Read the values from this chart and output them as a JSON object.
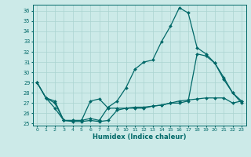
{
  "xlabel": "Humidex (Indice chaleur)",
  "bg_color": "#cceae8",
  "grid_color": "#aad4d0",
  "line_color": "#006868",
  "xlim": [
    -0.5,
    23.5
  ],
  "ylim": [
    24.8,
    36.6
  ],
  "yticks": [
    25,
    26,
    27,
    28,
    29,
    30,
    31,
    32,
    33,
    34,
    35,
    36
  ],
  "xticks": [
    0,
    1,
    2,
    3,
    4,
    5,
    6,
    7,
    8,
    9,
    10,
    11,
    12,
    13,
    14,
    15,
    16,
    17,
    18,
    19,
    20,
    21,
    22,
    23
  ],
  "series1_y": [
    29.0,
    27.5,
    27.0,
    25.3,
    25.2,
    25.2,
    25.3,
    25.2,
    25.3,
    26.3,
    26.5,
    26.5,
    26.5,
    26.7,
    26.8,
    27.0,
    27.2,
    27.3,
    27.4,
    27.5,
    27.5,
    27.5,
    27.0,
    27.2
  ],
  "series2_y": [
    29.0,
    27.5,
    27.2,
    25.3,
    25.3,
    25.3,
    25.5,
    25.3,
    26.6,
    27.2,
    28.5,
    30.3,
    31.0,
    31.2,
    33.0,
    34.5,
    36.3,
    35.8,
    32.4,
    31.8,
    30.9,
    29.5,
    28.0,
    27.2
  ],
  "series3_y": [
    29.0,
    27.5,
    26.5,
    25.3,
    25.3,
    25.3,
    27.2,
    27.4,
    26.5,
    26.5,
    26.5,
    26.6,
    26.6,
    26.7,
    26.8,
    27.0,
    27.0,
    27.2,
    31.8,
    31.6,
    30.9,
    29.3,
    28.0,
    27.0
  ]
}
